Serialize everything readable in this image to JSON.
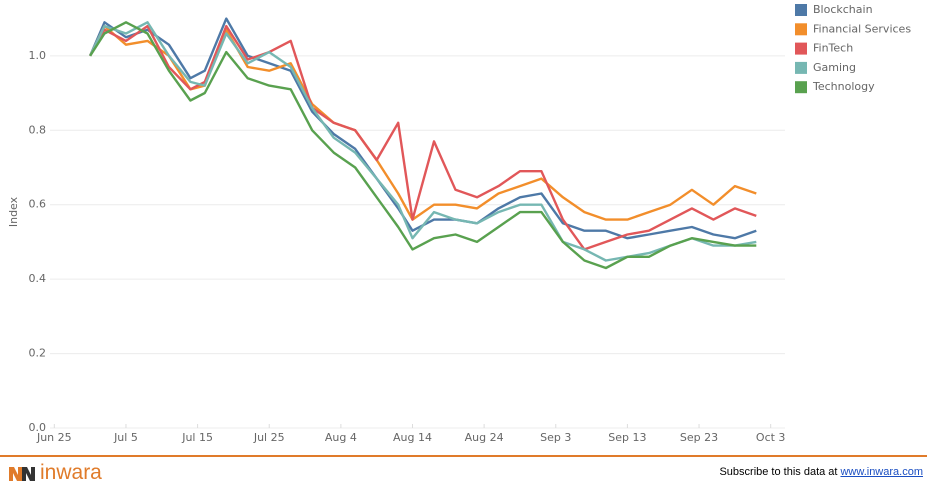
{
  "chart_data": {
    "type": "line",
    "y_label": "Index",
    "x": [
      "Jun 30",
      "Jul 2",
      "Jul 5",
      "Jul 8",
      "Jul 11",
      "Jul 14",
      "Jul 16",
      "Jul 19",
      "Jul 22",
      "Jul 25",
      "Jul 28",
      "Jul 31",
      "Aug 3",
      "Aug 6",
      "Aug 9",
      "Aug 12",
      "Aug 14",
      "Aug 17",
      "Aug 20",
      "Aug 23",
      "Aug 26",
      "Aug 29",
      "Sep 1",
      "Sep 4",
      "Sep 7",
      "Sep 10",
      "Sep 13",
      "Sep 16",
      "Sep 19",
      "Sep 22",
      "Sep 25",
      "Sep 28",
      "Oct 1"
    ],
    "xlim": [
      "Jun 23",
      "Oct 5"
    ],
    "xticks": [
      "Jun 25",
      "Jul 5",
      "Jul 15",
      "Jul 25",
      "Aug 4",
      "Aug 14",
      "Aug 24",
      "Sep 3",
      "Sep 13",
      "Sep 23",
      "Oct 3"
    ],
    "ylim": [
      0,
      1.15
    ],
    "yticks": [
      {
        "value": 0,
        "label": "0.0"
      },
      {
        "value": 0.2,
        "label": "0.2"
      },
      {
        "value": 0.4,
        "label": "0.4"
      },
      {
        "value": 0.6,
        "label": "0.6"
      },
      {
        "value": 0.8,
        "label": "0.8"
      },
      {
        "value": 1,
        "label": "1.0"
      }
    ],
    "grid": true,
    "legend": "right",
    "series": [
      {
        "name": "Blockchain",
        "color": "#4e79a7",
        "values": [
          1.0,
          1.09,
          1.05,
          1.07,
          1.03,
          0.94,
          0.96,
          1.1,
          1.0,
          0.98,
          0.96,
          0.85,
          0.79,
          0.75,
          0.67,
          0.59,
          0.53,
          0.56,
          0.56,
          0.55,
          0.59,
          0.62,
          0.63,
          0.55,
          0.53,
          0.53,
          0.51,
          0.52,
          0.53,
          0.54,
          0.52,
          0.51,
          0.53
        ]
      },
      {
        "name": "Financial Services",
        "color": "#f28e2b",
        "values": [
          1.0,
          1.08,
          1.03,
          1.04,
          1.0,
          0.91,
          0.92,
          1.07,
          0.97,
          0.96,
          0.98,
          0.87,
          0.82,
          0.8,
          0.72,
          0.63,
          0.56,
          0.6,
          0.6,
          0.59,
          0.63,
          0.65,
          0.67,
          0.62,
          0.58,
          0.56,
          0.56,
          0.58,
          0.6,
          0.64,
          0.6,
          0.65,
          0.63
        ]
      },
      {
        "name": "FinTech",
        "color": "#e15759",
        "values": [
          1.0,
          1.07,
          1.04,
          1.08,
          0.97,
          0.91,
          0.93,
          1.08,
          0.99,
          1.01,
          1.04,
          0.86,
          0.82,
          0.8,
          0.72,
          0.82,
          0.56,
          0.77,
          0.64,
          0.62,
          0.65,
          0.69,
          0.69,
          0.56,
          0.48,
          0.5,
          0.52,
          0.53,
          0.56,
          0.59,
          0.56,
          0.59,
          0.57
        ]
      },
      {
        "name": "Gaming",
        "color": "#76b7b2",
        "values": [
          1.0,
          1.08,
          1.06,
          1.09,
          1.0,
          0.93,
          0.92,
          1.06,
          0.98,
          1.01,
          0.97,
          0.86,
          0.78,
          0.74,
          0.67,
          0.6,
          0.51,
          0.58,
          0.56,
          0.55,
          0.58,
          0.6,
          0.6,
          0.5,
          0.48,
          0.45,
          0.46,
          0.47,
          0.49,
          0.51,
          0.49,
          0.49,
          0.5
        ]
      },
      {
        "name": "Technology",
        "color": "#59a14f",
        "values": [
          1.0,
          1.06,
          1.09,
          1.06,
          0.96,
          0.88,
          0.9,
          1.01,
          0.94,
          0.92,
          0.91,
          0.8,
          0.74,
          0.7,
          0.62,
          0.54,
          0.48,
          0.51,
          0.52,
          0.5,
          0.54,
          0.58,
          0.58,
          0.5,
          0.45,
          0.43,
          0.46,
          0.46,
          0.49,
          0.51,
          0.5,
          0.49,
          0.49
        ]
      }
    ]
  },
  "footer": {
    "brand": "inwara",
    "text": "Subscribe to this data at",
    "link": "www.inwara.com"
  }
}
